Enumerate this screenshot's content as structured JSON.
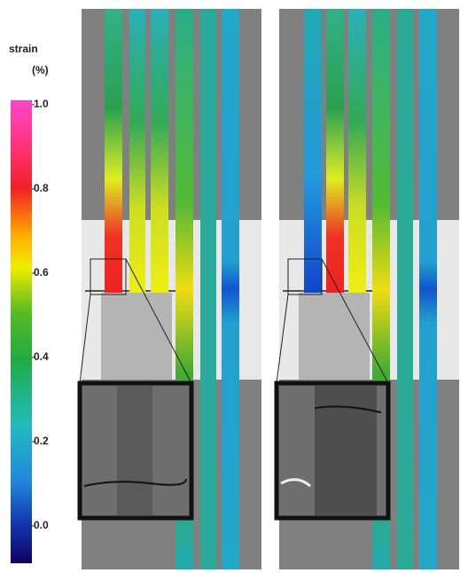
{
  "colorbar": {
    "title": "strain",
    "unit": "(%)",
    "ticks": [
      {
        "value": 0,
        "label": "0.0"
      },
      {
        "value": 0.2,
        "label": "0.2"
      },
      {
        "value": 0.4,
        "label": "0.4"
      },
      {
        "value": 0.6,
        "label": "0.6"
      },
      {
        "value": 0.8,
        "label": "0.8"
      },
      {
        "value": 1,
        "label": "1.0"
      }
    ]
  }
}
